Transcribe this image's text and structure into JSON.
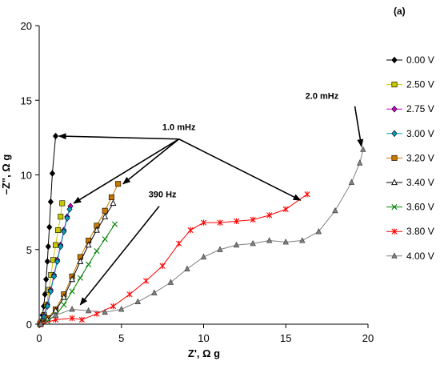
{
  "chart_data": {
    "type": "scatter",
    "panel_label": "(a)",
    "xlabel": "Z', Ω g",
    "ylabel": "–Z\", Ω g",
    "xlim": [
      0,
      20
    ],
    "ylim": [
      0,
      20
    ],
    "xticks": [
      "0",
      "5",
      "10",
      "15",
      "20"
    ],
    "yticks": [
      "0",
      "5",
      "10",
      "15",
      "20"
    ],
    "grid": false,
    "legend_position": "right",
    "series": [
      {
        "name": "0.00 V",
        "color": "#000000",
        "marker": "diamond",
        "x": [
          0.05,
          0.12,
          0.2,
          0.28,
          0.35,
          0.42,
          0.5,
          0.55,
          0.62,
          0.7,
          0.8,
          1.0
        ],
        "y": [
          0.0,
          0.2,
          0.6,
          1.2,
          2.0,
          3.0,
          4.2,
          5.2,
          6.5,
          8.2,
          10.1,
          12.6
        ]
      },
      {
        "name": "2.50 V",
        "color": "#c8c800",
        "marker": "square",
        "x": [
          0.05,
          0.15,
          0.3,
          0.45,
          0.6,
          0.72,
          0.85,
          1.0,
          1.15,
          1.3,
          1.4
        ],
        "y": [
          0.0,
          0.2,
          0.6,
          1.3,
          2.3,
          3.3,
          4.3,
          5.3,
          6.3,
          7.2,
          8.1
        ]
      },
      {
        "name": "2.75 V",
        "color": "#cc00cc",
        "marker": "diamond",
        "x": [
          0.1,
          0.3,
          0.5,
          0.7,
          0.9,
          1.1,
          1.3,
          1.5,
          1.7,
          1.9
        ],
        "y": [
          0.1,
          0.6,
          1.3,
          2.3,
          3.3,
          4.3,
          5.3,
          6.3,
          7.2,
          7.9
        ]
      },
      {
        "name": "3.00 V",
        "color": "#00a0c0",
        "marker": "diamond",
        "x": [
          0.1,
          0.3,
          0.5,
          0.7,
          0.9,
          1.1,
          1.3,
          1.5,
          1.7,
          1.85
        ],
        "y": [
          0.1,
          0.5,
          1.2,
          2.2,
          3.2,
          4.2,
          5.2,
          6.2,
          7.1,
          7.7
        ]
      },
      {
        "name": "3.20 V",
        "color": "#c87800",
        "marker": "square",
        "x": [
          0.1,
          0.5,
          1.0,
          1.5,
          2.0,
          2.5,
          3.0,
          3.5,
          4.0,
          4.4,
          4.8
        ],
        "y": [
          0.1,
          0.4,
          1.0,
          2.0,
          3.2,
          4.5,
          5.6,
          6.6,
          7.6,
          8.5,
          9.4
        ]
      },
      {
        "name": "3.40 V",
        "color": "#000000",
        "marker": "triangle-open",
        "x": [
          0.1,
          0.5,
          1.0,
          1.5,
          2.0,
          2.5,
          3.0,
          3.5,
          4.0,
          4.5
        ],
        "y": [
          0.1,
          0.3,
          0.9,
          1.8,
          3.0,
          4.2,
          5.3,
          6.3,
          7.2,
          8.1
        ]
      },
      {
        "name": "3.60 V",
        "color": "#008000",
        "marker": "x",
        "x": [
          0.1,
          0.5,
          1.0,
          1.5,
          2.0,
          2.5,
          3.0,
          3.5,
          4.0,
          4.6
        ],
        "y": [
          0.0,
          0.2,
          0.6,
          1.3,
          2.2,
          3.1,
          4.0,
          4.9,
          5.7,
          6.7
        ]
      },
      {
        "name": "3.80 V",
        "color": "#ff0000",
        "marker": "star",
        "x": [
          0.1,
          1.0,
          2.0,
          2.6,
          3.5,
          4.5,
          5.5,
          6.5,
          7.5,
          8.5,
          9.2,
          10.0,
          11.0,
          12.0,
          13.0,
          14.0,
          15.0,
          16.3
        ],
        "y": [
          0.0,
          0.3,
          0.4,
          0.3,
          0.7,
          1.2,
          2.0,
          2.9,
          3.9,
          5.4,
          6.3,
          6.8,
          6.8,
          6.9,
          7.0,
          7.3,
          7.7,
          8.7
        ]
      },
      {
        "name": "4.00 V",
        "color": "#808080",
        "marker": "triangle",
        "x": [
          0.1,
          1.0,
          2.0,
          3.0,
          4.0,
          5.0,
          6.0,
          7.0,
          8.0,
          9.0,
          10.0,
          11.0,
          12.0,
          13.0,
          14.0,
          15.0,
          16.0,
          17.0,
          18.0,
          19.0,
          19.5,
          19.7
        ],
        "y": [
          0.0,
          0.6,
          1.0,
          0.9,
          0.8,
          1.0,
          1.5,
          2.1,
          2.8,
          3.7,
          4.5,
          5.0,
          5.3,
          5.4,
          5.6,
          5.5,
          5.6,
          6.2,
          7.6,
          9.5,
          10.8,
          11.7
        ]
      }
    ],
    "annotations": [
      {
        "text": "1.0 mHz",
        "x": 8.5,
        "y": 13.0
      },
      {
        "text": "390 Hz",
        "x": 7.5,
        "y": 8.5
      },
      {
        "text": "2.0 mHz",
        "x": 17.2,
        "y": 15.1
      }
    ]
  }
}
